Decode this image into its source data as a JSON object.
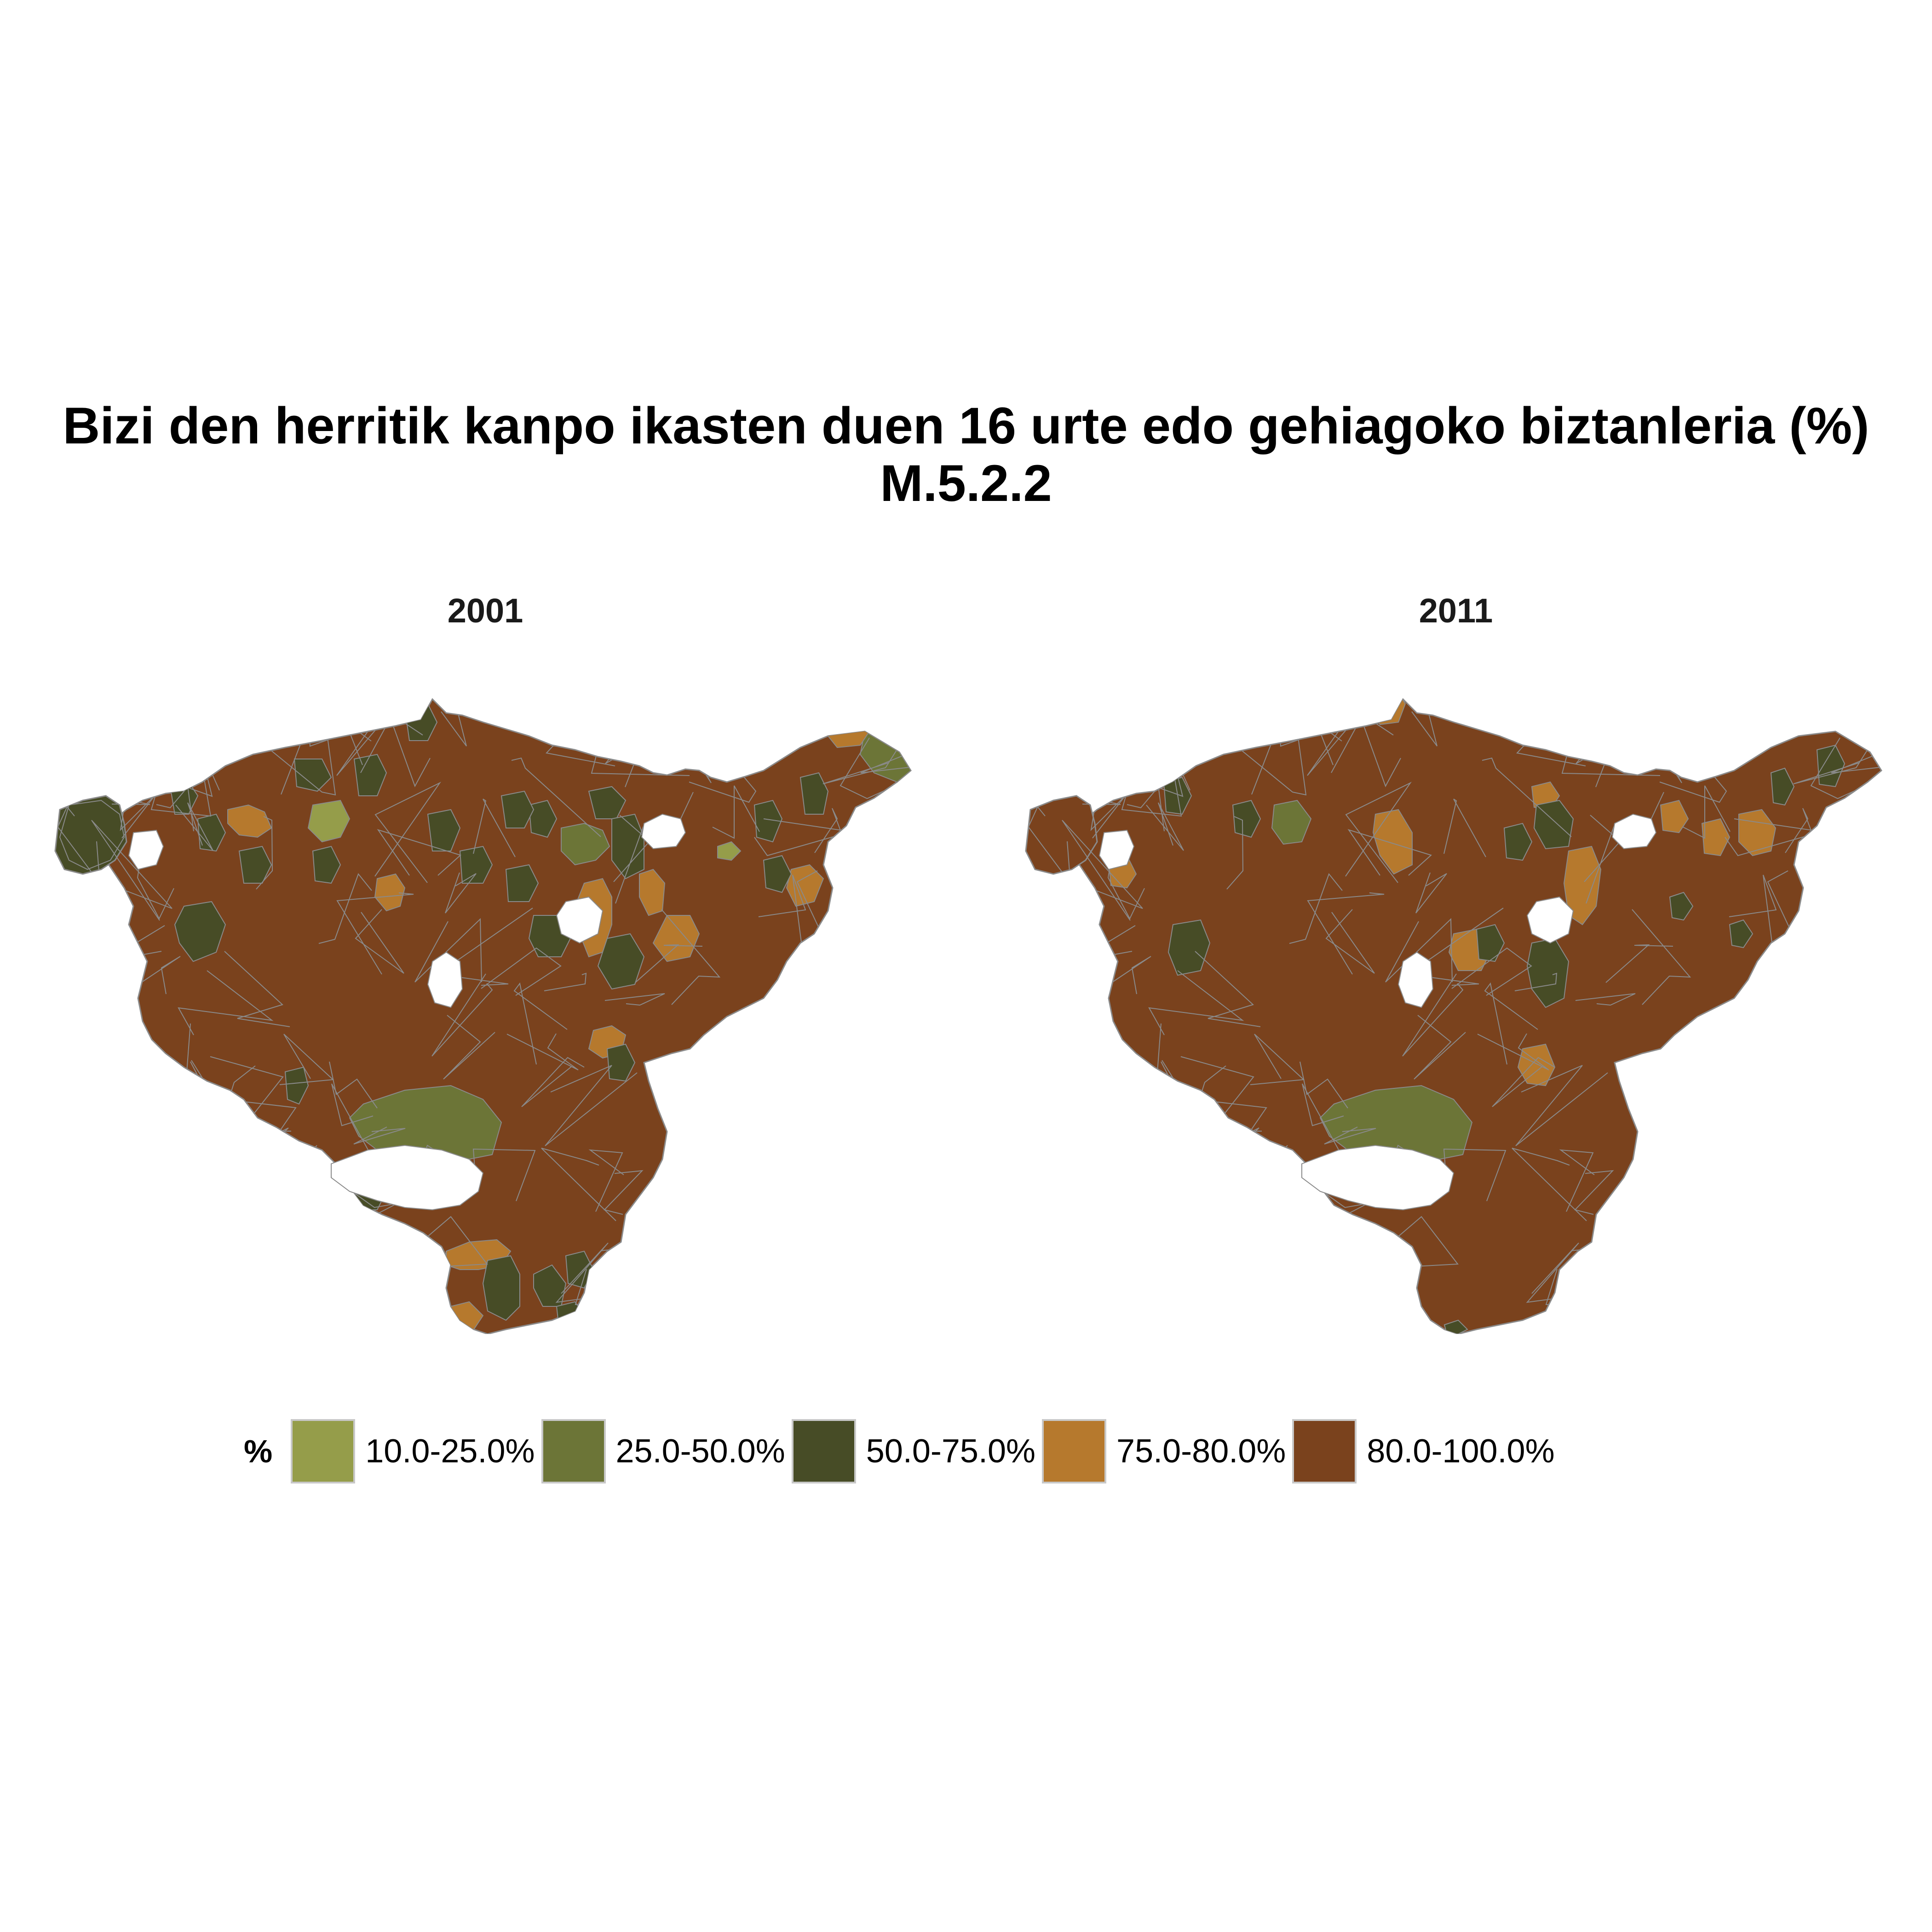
{
  "title": {
    "line1": "Bizi den herritik kanpo ikasten duen 16 urte edo gehiagoko biztanleria (%)",
    "line2": "M.5.2.2"
  },
  "colors": {
    "c10_25": "#959d4a",
    "c25_50": "#6c7537",
    "c50_75": "#474c26",
    "c75_80": "#b6792d",
    "c80_100": "#7a421d",
    "border": "#8a8a8a"
  },
  "panels": [
    {
      "label": "2001"
    },
    {
      "label": "2011"
    }
  ],
  "legend": {
    "title": "%",
    "items": [
      {
        "label": "10.0-25.0%",
        "color": "#959d4a"
      },
      {
        "label": "25.0-50.0%",
        "color": "#6c7537"
      },
      {
        "label": "50.0-75.0%",
        "color": "#474c26"
      },
      {
        "label": "75.0-80.0%",
        "color": "#b6792d"
      },
      {
        "label": "80.0-100.0%",
        "color": "#7a421d"
      }
    ]
  }
}
